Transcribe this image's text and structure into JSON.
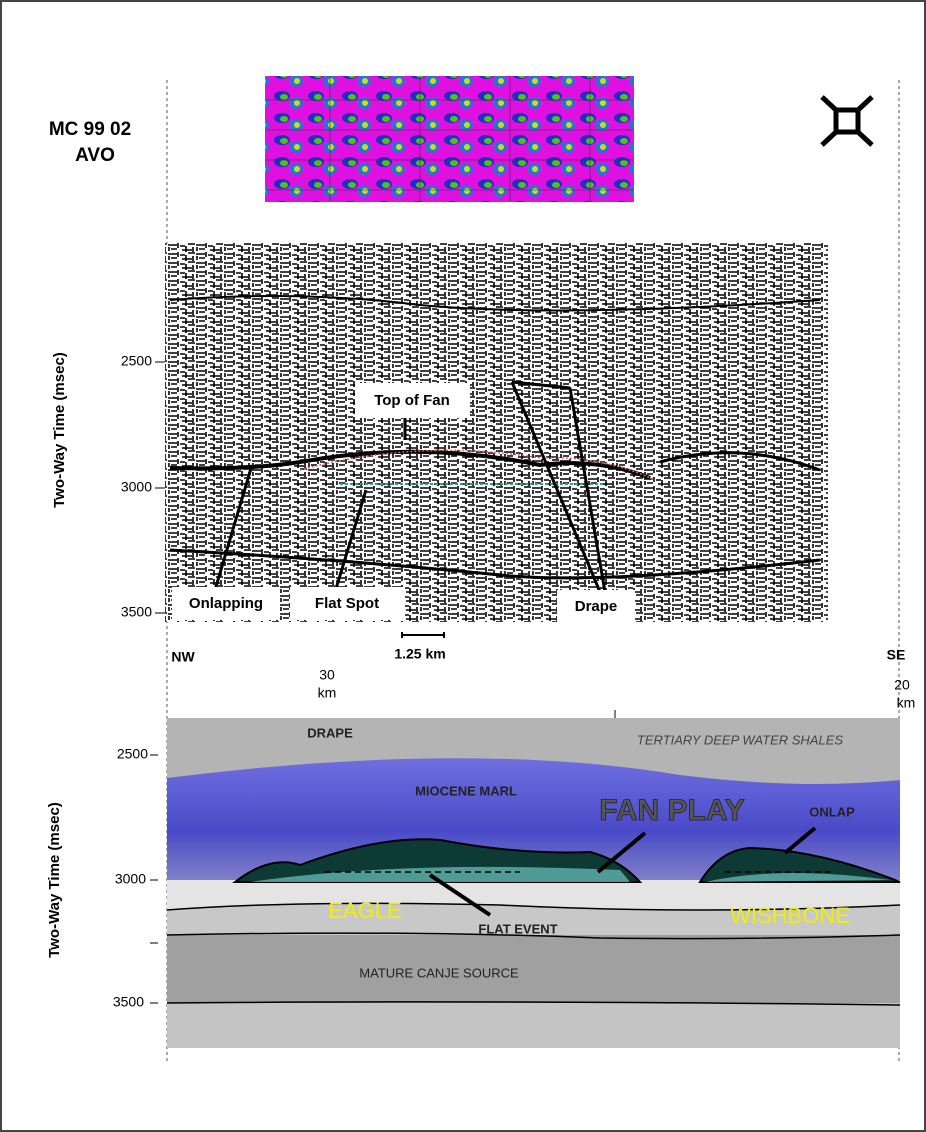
{
  "header": {
    "title_line1": "MC 99 02",
    "title_line2": "AVO"
  },
  "seismic": {
    "axis_title": "Two-Way Time (msec)",
    "ticks": [
      "2500",
      "3000",
      "3500"
    ],
    "labels": {
      "top_of_fan": "Top of Fan",
      "onlapping": "Onlapping",
      "flat_spot": "Flat Spot",
      "drape": "Drape"
    },
    "scale_bar": "1.25 km",
    "left_end": "NW",
    "right_end": "SE"
  },
  "distances": [
    {
      "value": "30",
      "unit": "km"
    },
    {
      "value": "20",
      "unit": "km"
    }
  ],
  "cross_section": {
    "axis_title": "Two-Way Time (msec)",
    "ticks": [
      "2500",
      "3000",
      "3500"
    ],
    "labels": {
      "drape": "DRAPE",
      "shales": "TERTIARY DEEP WATER SHALES",
      "marl": "MIOCENE MARL",
      "fan_play": "FAN PLAY",
      "onlap": "ONLAP",
      "eagle": "EAGLE",
      "wishbone": "WISHBONE",
      "flat_event": "FLAT EVENT",
      "source": "MATURE CANJE SOURCE"
    }
  }
}
